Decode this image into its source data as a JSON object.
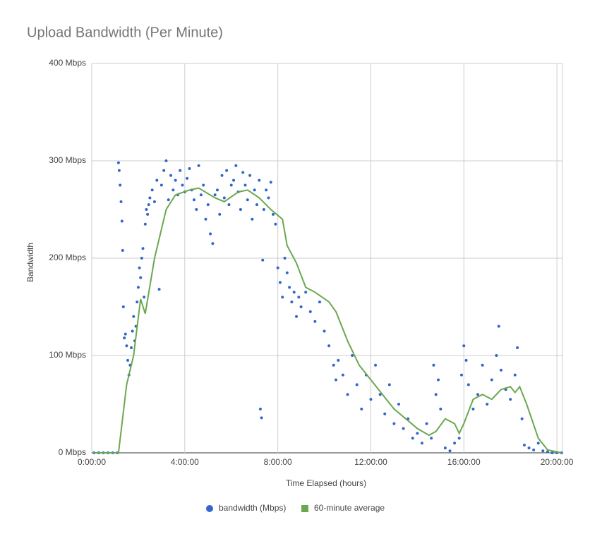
{
  "chart_data": {
    "type": "scatter",
    "title": "Upload Bandwidth (Per Minute)",
    "x_label": "Time Elapsed (hours)",
    "y_label": "Bandwidth",
    "xlim": [
      0,
      20.24
    ],
    "ylim": [
      0,
      400
    ],
    "grid": true,
    "legend": "bottom",
    "xticks": [
      {
        "value": 0,
        "label": "0:00:00"
      },
      {
        "value": 4,
        "label": "4:00:00"
      },
      {
        "value": 8,
        "label": "8:00:00"
      },
      {
        "value": 12,
        "label": "12:00:00"
      },
      {
        "value": 16,
        "label": "16:00:00"
      },
      {
        "value": 20,
        "label": "20:00:00"
      }
    ],
    "yticks": [
      {
        "value": 0,
        "label": "0 Mbps"
      },
      {
        "value": 100,
        "label": "100 Mbps"
      },
      {
        "value": 200,
        "label": "200 Mbps"
      },
      {
        "value": 300,
        "label": "300 Mbps"
      },
      {
        "value": 400,
        "label": "400 Mbps"
      }
    ],
    "series": [
      {
        "name": "bandwidth (Mbps)",
        "type": "scatter",
        "color": "#3366cc",
        "x": [
          0.1,
          0.3,
          0.5,
          0.7,
          0.9,
          1.1,
          1.15,
          1.18,
          1.22,
          1.26,
          1.3,
          1.33,
          1.36,
          1.4,
          1.45,
          1.5,
          1.55,
          1.6,
          1.65,
          1.7,
          1.75,
          1.8,
          1.85,
          1.9,
          1.95,
          2.0,
          2.05,
          2.1,
          2.15,
          2.2,
          2.25,
          2.3,
          2.35,
          2.4,
          2.45,
          2.5,
          2.6,
          2.7,
          2.8,
          2.9,
          3.0,
          3.1,
          3.2,
          3.3,
          3.4,
          3.5,
          3.6,
          3.7,
          3.8,
          3.9,
          4.0,
          4.1,
          4.2,
          4.3,
          4.4,
          4.5,
          4.6,
          4.7,
          4.8,
          4.9,
          5.0,
          5.1,
          5.2,
          5.3,
          5.4,
          5.5,
          5.6,
          5.7,
          5.8,
          5.9,
          6.0,
          6.1,
          6.2,
          6.3,
          6.4,
          6.5,
          6.6,
          6.7,
          6.8,
          6.9,
          7.0,
          7.1,
          7.2,
          7.25,
          7.3,
          7.35,
          7.4,
          7.5,
          7.6,
          7.7,
          7.8,
          7.9,
          8.0,
          8.1,
          8.2,
          8.3,
          8.4,
          8.5,
          8.6,
          8.7,
          8.8,
          8.9,
          9.0,
          9.2,
          9.4,
          9.6,
          9.8,
          10.0,
          10.2,
          10.4,
          10.5,
          10.6,
          10.8,
          11.0,
          11.2,
          11.4,
          11.6,
          11.8,
          12.0,
          12.2,
          12.4,
          12.6,
          12.8,
          13.0,
          13.2,
          13.4,
          13.6,
          13.8,
          14.0,
          14.2,
          14.4,
          14.6,
          14.7,
          14.8,
          14.9,
          15.0,
          15.2,
          15.4,
          15.6,
          15.8,
          15.9,
          16.0,
          16.1,
          16.2,
          16.4,
          16.6,
          16.8,
          17.0,
          17.2,
          17.4,
          17.5,
          17.6,
          17.8,
          18.0,
          18.2,
          18.3,
          18.5,
          18.6,
          18.8,
          19.0,
          19.2,
          19.4,
          19.6,
          19.8,
          20.0,
          20.2
        ],
        "values": [
          0,
          0,
          0,
          0,
          0,
          0,
          298,
          290,
          275,
          258,
          238,
          208,
          150,
          118,
          122,
          110,
          95,
          80,
          90,
          108,
          125,
          140,
          115,
          130,
          155,
          170,
          190,
          180,
          200,
          210,
          160,
          235,
          250,
          245,
          255,
          262,
          270,
          258,
          280,
          168,
          275,
          290,
          300,
          260,
          285,
          270,
          280,
          265,
          290,
          275,
          268,
          282,
          292,
          270,
          260,
          250,
          295,
          265,
          275,
          240,
          255,
          225,
          215,
          265,
          270,
          245,
          285,
          262,
          290,
          255,
          275,
          280,
          295,
          268,
          250,
          288,
          275,
          260,
          285,
          240,
          270,
          255,
          280,
          45,
          36,
          198,
          250,
          270,
          262,
          278,
          245,
          235,
          190,
          175,
          160,
          200,
          185,
          170,
          155,
          165,
          140,
          160,
          150,
          165,
          145,
          135,
          155,
          125,
          110,
          90,
          75,
          95,
          80,
          60,
          100,
          70,
          45,
          80,
          55,
          90,
          60,
          40,
          70,
          30,
          50,
          25,
          35,
          15,
          20,
          10,
          30,
          15,
          90,
          60,
          75,
          45,
          5,
          2,
          10,
          15,
          80,
          110,
          95,
          70,
          45,
          60,
          90,
          50,
          75,
          100,
          130,
          85,
          65,
          55,
          80,
          108,
          35,
          8,
          5,
          3,
          10,
          2,
          1,
          0,
          0,
          0
        ]
      },
      {
        "name": "60-minute average",
        "type": "line",
        "color": "#6aa84f",
        "x": [
          0,
          1.15,
          1.5,
          1.8,
          2.1,
          2.3,
          2.7,
          3.2,
          3.6,
          4.2,
          4.6,
          5.3,
          5.7,
          6.3,
          6.7,
          7.2,
          7.7,
          8.2,
          8.4,
          8.8,
          9.2,
          9.6,
          10.2,
          10.5,
          11,
          11.5,
          12,
          12.5,
          13,
          13.5,
          14,
          14.5,
          14.8,
          15.2,
          15.6,
          15.8,
          16,
          16.4,
          16.8,
          17.2,
          17.6,
          18,
          18.2,
          18.4,
          18.7,
          19.2,
          19.6,
          20.2
        ],
        "values": [
          0,
          0,
          70,
          100,
          158,
          143,
          200,
          250,
          265,
          270,
          272,
          262,
          258,
          268,
          270,
          262,
          250,
          240,
          213,
          195,
          170,
          165,
          155,
          145,
          115,
          90,
          75,
          60,
          45,
          35,
          25,
          18,
          22,
          35,
          30,
          20,
          30,
          55,
          60,
          55,
          65,
          68,
          62,
          68,
          50,
          15,
          3,
          0
        ]
      }
    ]
  }
}
